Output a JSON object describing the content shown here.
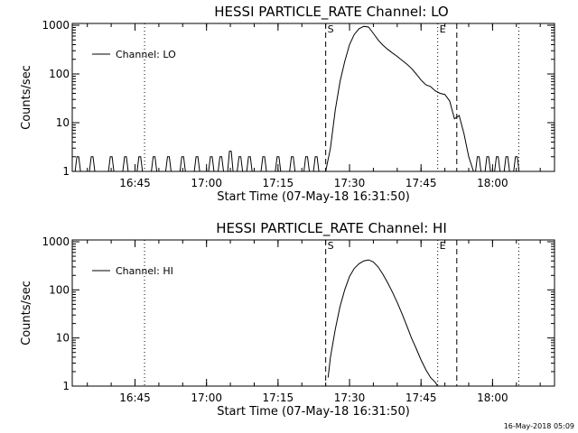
{
  "footer": {
    "timestamp": "16-May-2018 05:09"
  },
  "chart_data": [
    {
      "type": "line",
      "title": "HESSI PARTICLE_RATE Channel: LO",
      "xlabel": "Start Time (07-May-18 16:31:50)",
      "ylabel": "Counts/sec",
      "yscale": "log",
      "ylim": [
        1,
        1000
      ],
      "xlim": [
        "16:31:50",
        "18:13:00"
      ],
      "x_ticks": [
        "16:45",
        "17:00",
        "17:15",
        "17:30",
        "17:45",
        "18:00"
      ],
      "y_ticks": [
        "1",
        "10",
        "100",
        "1000"
      ],
      "legend": {
        "label": "Channel: LO",
        "position": "top-left"
      },
      "vlines": [
        {
          "time": "16:47:00",
          "style": "dotted"
        },
        {
          "time": "17:25:00",
          "style": "dashed",
          "label": "S"
        },
        {
          "time": "17:48:30",
          "style": "dotted",
          "label": "E"
        },
        {
          "time": "17:52:30",
          "style": "dashed"
        },
        {
          "time": "18:05:30",
          "style": "dotted"
        }
      ],
      "series": [
        {
          "name": "Channel: LO",
          "points": [
            [
              "17:25:00",
              1
            ],
            [
              "17:26:00",
              3
            ],
            [
              "17:27:00",
              18
            ],
            [
              "17:28:00",
              70
            ],
            [
              "17:29:00",
              180
            ],
            [
              "17:30:00",
              400
            ],
            [
              "17:31:00",
              650
            ],
            [
              "17:32:00",
              850
            ],
            [
              "17:33:00",
              950
            ],
            [
              "17:34:00",
              920
            ],
            [
              "17:35:00",
              680
            ],
            [
              "17:36:00",
              500
            ],
            [
              "17:37:00",
              390
            ],
            [
              "17:38:00",
              320
            ],
            [
              "17:39:00",
              270
            ],
            [
              "17:40:00",
              230
            ],
            [
              "17:41:00",
              190
            ],
            [
              "17:42:00",
              160
            ],
            [
              "17:43:00",
              130
            ],
            [
              "17:44:00",
              100
            ],
            [
              "17:45:00",
              75
            ],
            [
              "17:46:00",
              60
            ],
            [
              "17:47:00",
              55
            ],
            [
              "17:48:00",
              45
            ],
            [
              "17:49:00",
              40
            ],
            [
              "17:50:00",
              38
            ],
            [
              "17:51:00",
              28
            ],
            [
              "17:52:00",
              12
            ],
            [
              "17:53:00",
              14
            ],
            [
              "17:54:00",
              6
            ],
            [
              "17:55:00",
              2
            ],
            [
              "17:56:00",
              1
            ]
          ],
          "noise_floor": 1,
          "noise_spikes": [
            [
              "16:33:00",
              2
            ],
            [
              "16:36:00",
              2
            ],
            [
              "16:40:00",
              2
            ],
            [
              "16:43:00",
              2
            ],
            [
              "16:46:00",
              2
            ],
            [
              "16:49:00",
              2
            ],
            [
              "16:52:00",
              2
            ],
            [
              "16:55:00",
              2
            ],
            [
              "16:58:00",
              2
            ],
            [
              "17:01:00",
              2
            ],
            [
              "17:03:00",
              2
            ],
            [
              "17:05:00",
              2.6
            ],
            [
              "17:07:00",
              2
            ],
            [
              "17:09:00",
              2
            ],
            [
              "17:12:00",
              2
            ],
            [
              "17:15:00",
              2
            ],
            [
              "17:18:00",
              2
            ],
            [
              "17:21:00",
              2
            ],
            [
              "17:23:00",
              2
            ],
            [
              "17:57:00",
              2
            ],
            [
              "17:59:00",
              2
            ],
            [
              "18:01:00",
              2
            ],
            [
              "18:03:00",
              2
            ],
            [
              "18:05:00",
              2
            ]
          ]
        }
      ]
    },
    {
      "type": "line",
      "title": "HESSI PARTICLE_RATE Channel: HI",
      "xlabel": "Start Time (07-May-18 16:31:50)",
      "ylabel": "Counts/sec",
      "yscale": "log",
      "ylim": [
        1,
        1000
      ],
      "xlim": [
        "16:31:50",
        "18:13:00"
      ],
      "x_ticks": [
        "16:45",
        "17:00",
        "17:15",
        "17:30",
        "17:45",
        "18:00"
      ],
      "y_ticks": [
        "1",
        "10",
        "100",
        "1000"
      ],
      "legend": {
        "label": "Channel: HI",
        "position": "top-left"
      },
      "vlines": [
        {
          "time": "16:47:00",
          "style": "dotted"
        },
        {
          "time": "17:25:00",
          "style": "dashed",
          "label": "S"
        },
        {
          "time": "17:48:30",
          "style": "dotted",
          "label": "E"
        },
        {
          "time": "17:52:30",
          "style": "dashed"
        },
        {
          "time": "18:05:30",
          "style": "dotted"
        }
      ],
      "series": [
        {
          "name": "Channel: HI",
          "points": [
            [
              "17:25:30",
              1.5
            ],
            [
              "17:26:00",
              4
            ],
            [
              "17:27:00",
              15
            ],
            [
              "17:28:00",
              45
            ],
            [
              "17:29:00",
              100
            ],
            [
              "17:30:00",
              190
            ],
            [
              "17:31:00",
              280
            ],
            [
              "17:32:00",
              350
            ],
            [
              "17:33:00",
              400
            ],
            [
              "17:34:00",
              420
            ],
            [
              "17:35:00",
              380
            ],
            [
              "17:36:00",
              300
            ],
            [
              "17:37:00",
              210
            ],
            [
              "17:38:00",
              140
            ],
            [
              "17:39:00",
              90
            ],
            [
              "17:40:00",
              55
            ],
            [
              "17:41:00",
              32
            ],
            [
              "17:42:00",
              18
            ],
            [
              "17:43:00",
              10
            ],
            [
              "17:44:00",
              6
            ],
            [
              "17:45:00",
              3.5
            ],
            [
              "17:46:00",
              2.2
            ],
            [
              "17:47:00",
              1.5
            ],
            [
              "17:48:00",
              1.2
            ],
            [
              "17:48:30",
              1
            ]
          ],
          "noise_floor": null,
          "noise_spikes": []
        }
      ]
    }
  ]
}
